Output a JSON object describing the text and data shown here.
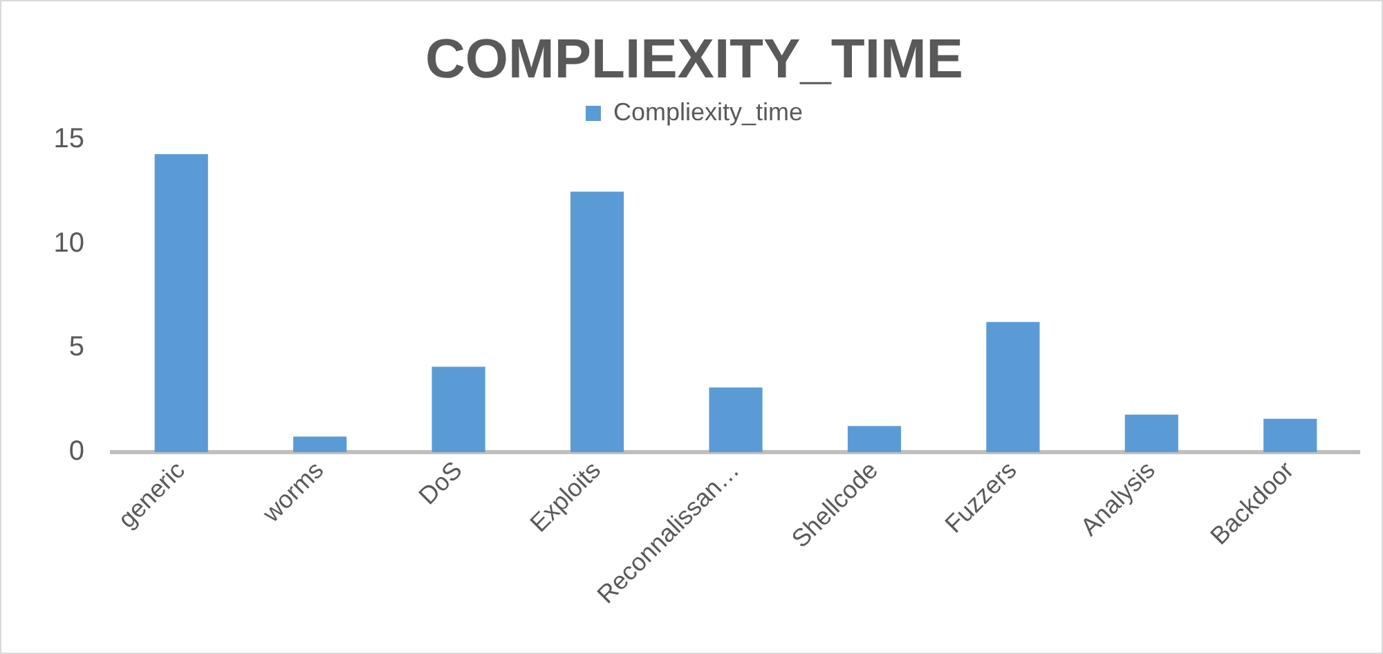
{
  "chart_data": {
    "type": "bar",
    "title": "COMPLIEXITY_TIME",
    "categories": [
      "generic",
      "worms",
      "DoS",
      "Exploits",
      "Reconnalissan…",
      "Shellcode",
      "Fuzzers",
      "Analysis",
      "Backdoor"
    ],
    "series": [
      {
        "name": "Compliexity_time",
        "color": "#5b9bd5",
        "values": [
          14.3,
          0.75,
          4.1,
          12.5,
          3.1,
          1.25,
          6.25,
          1.8,
          1.6
        ]
      }
    ],
    "ylim": [
      0,
      15
    ],
    "yticks": [
      0,
      5,
      10,
      15
    ],
    "grid": false,
    "legend": "top"
  }
}
